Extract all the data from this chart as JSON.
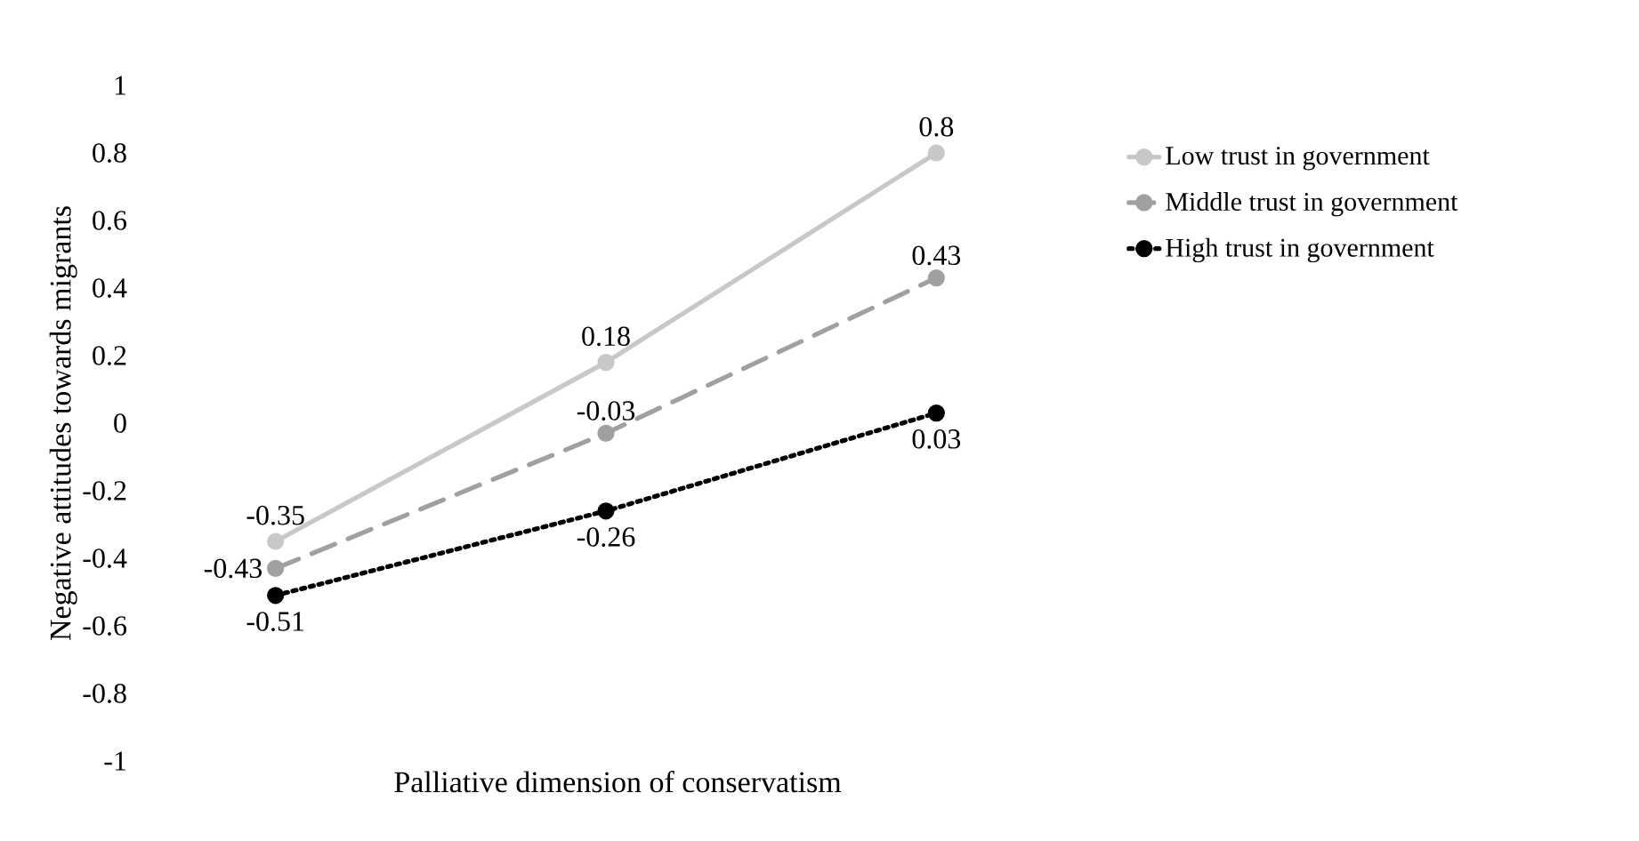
{
  "chart_data": {
    "type": "line",
    "xlabel": "Palliative dimension of conservatism",
    "ylabel": "Negative attitudes towards migrants",
    "categories": [
      null,
      null,
      null
    ],
    "series": [
      {
        "name": "Low trust in government",
        "color": "#c8c8c8",
        "line_style": "solid",
        "values": [
          -0.35,
          0.18,
          0.8
        ]
      },
      {
        "name": "Middle trust in government",
        "color": "#a0a0a0",
        "line_style": "dashed",
        "values": [
          -0.43,
          -0.03,
          0.43
        ]
      },
      {
        "name": "High trust in government",
        "color": "#000000",
        "line_style": "dotted",
        "values": [
          -0.51,
          -0.26,
          0.03
        ]
      }
    ],
    "ylim": [
      -1,
      1
    ],
    "yticks": [
      -1,
      -0.8,
      -0.6,
      -0.4,
      -0.2,
      0,
      0.2,
      0.4,
      0.6,
      0.8,
      1
    ],
    "marker": "circle",
    "data_labels": true,
    "legend": "right",
    "grid": false
  }
}
